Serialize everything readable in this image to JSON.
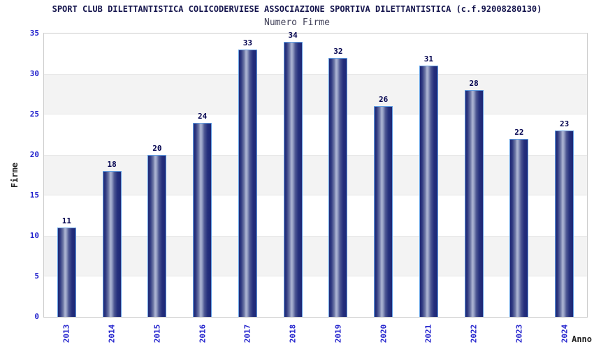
{
  "header": {
    "title": "SPORT CLUB DILETTANTISTICA COLICODERVIESE ASSOCIAZIONE SPORTIVA DILETTANTISTICA (c.f.92008280130)",
    "subtitle": "Numero Firme"
  },
  "chart_data": {
    "type": "bar",
    "title": "SPORT CLUB DILETTANTISTICA COLICODERVIESE ASSOCIAZIONE SPORTIVA DILETTANTISTICA (c.f.92008280130)",
    "subtitle": "Numero Firme",
    "categories": [
      "2013",
      "2014",
      "2015",
      "2016",
      "2017",
      "2018",
      "2019",
      "2020",
      "2021",
      "2022",
      "2023",
      "2024"
    ],
    "values": [
      11,
      18,
      20,
      24,
      33,
      34,
      32,
      26,
      31,
      28,
      22,
      23
    ],
    "xlabel": "Anno",
    "ylabel": "Firme",
    "ylim": [
      0,
      35
    ],
    "ytick_step": 5,
    "yticks": [
      0,
      5,
      10,
      15,
      20,
      25,
      30,
      35
    ],
    "grid": "alternating horizontal bands every 5 units (gray bands at 5-10, 15-20, 25-30)",
    "legend": "none",
    "colors": {
      "bar_dark": "#1d2776",
      "bar_highlight": "#aeb6d4",
      "bar_border": "#63a0e4",
      "tick_text": "#2323cd",
      "value_text": "#00004e",
      "axis_title_text": "#222222",
      "band_gray": "#f3f3f3",
      "plot_border": "#cccccc",
      "title_text": "#14144c",
      "subtitle_text": "#42425a"
    }
  }
}
